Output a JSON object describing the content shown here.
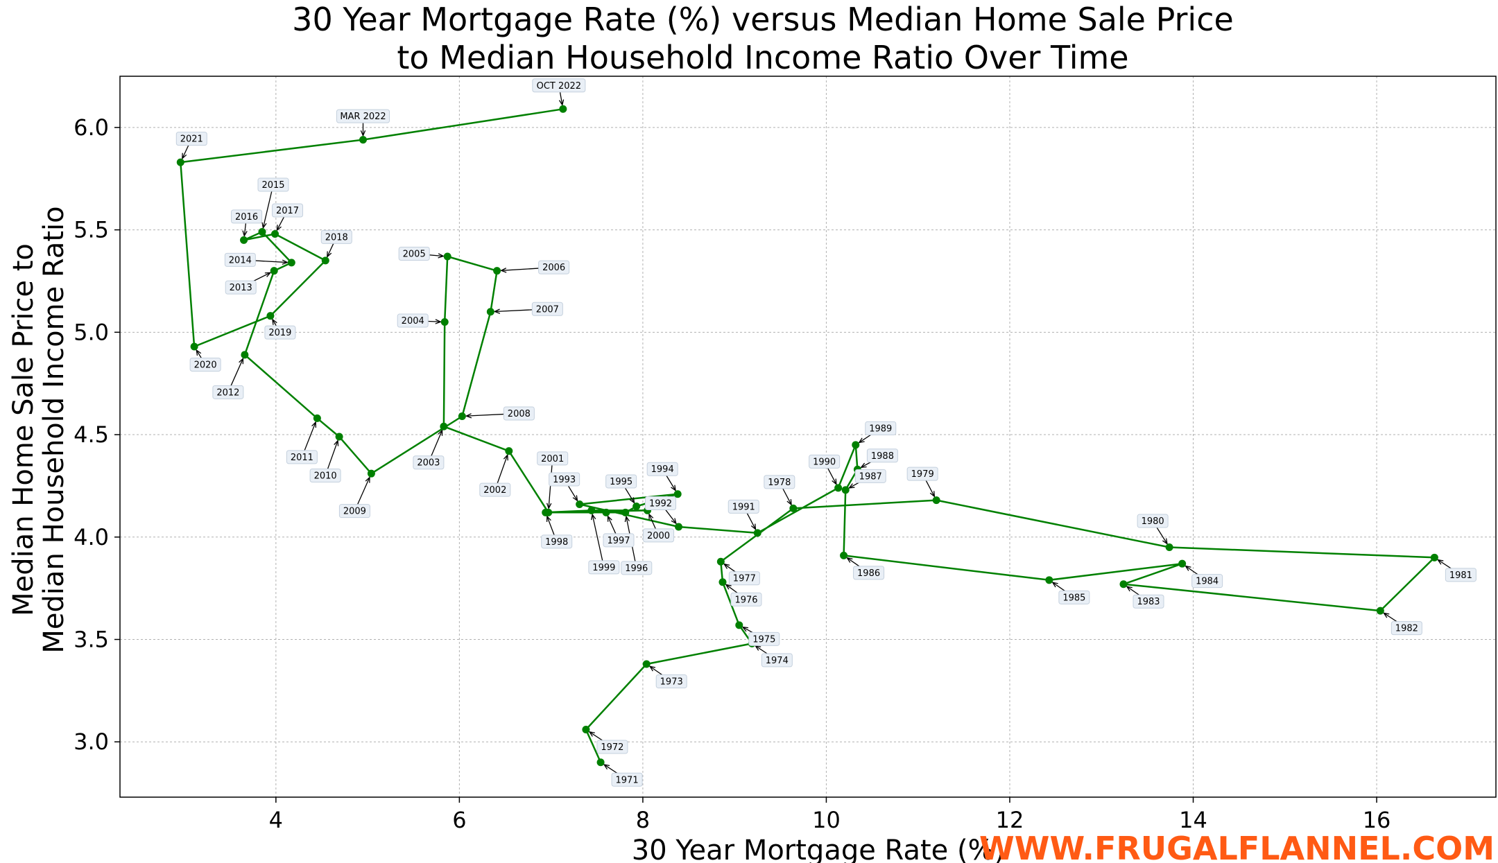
{
  "chart_data": {
    "type": "line",
    "title": [
      "30 Year Mortgage Rate (%) versus Median Home Sale Price",
      "to Median Household Income Ratio Over Time"
    ],
    "xlabel": "30 Year Mortgage Rate (%)",
    "ylabel": [
      "Median Home Sale Price to",
      "Median Household Income Ratio"
    ],
    "xlim": [
      2.3,
      17.3
    ],
    "ylim": [
      2.73,
      6.25
    ],
    "xticks": [
      4,
      6,
      8,
      10,
      12,
      14,
      16
    ],
    "yticks": [
      3.0,
      3.5,
      4.0,
      4.5,
      5.0,
      5.5,
      6.0
    ],
    "grid": true,
    "line_color": "#008000",
    "watermark_color": "#ff5a14",
    "points": [
      {
        "label": "1971",
        "x": 7.54,
        "y": 2.9
      },
      {
        "label": "1972",
        "x": 7.38,
        "y": 3.06
      },
      {
        "label": "1973",
        "x": 8.04,
        "y": 3.38
      },
      {
        "label": "1974",
        "x": 9.19,
        "y": 3.48
      },
      {
        "label": "1975",
        "x": 9.05,
        "y": 3.57
      },
      {
        "label": "1976",
        "x": 8.87,
        "y": 3.78
      },
      {
        "label": "1977",
        "x": 8.85,
        "y": 3.88
      },
      {
        "label": "1978",
        "x": 9.64,
        "y": 4.14
      },
      {
        "label": "1979",
        "x": 11.2,
        "y": 4.18
      },
      {
        "label": "1980",
        "x": 13.74,
        "y": 3.95
      },
      {
        "label": "1981",
        "x": 16.63,
        "y": 3.9
      },
      {
        "label": "1982",
        "x": 16.04,
        "y": 3.64
      },
      {
        "label": "1983",
        "x": 13.24,
        "y": 3.77
      },
      {
        "label": "1984",
        "x": 13.88,
        "y": 3.87
      },
      {
        "label": "1985",
        "x": 12.43,
        "y": 3.79
      },
      {
        "label": "1986",
        "x": 10.19,
        "y": 3.91
      },
      {
        "label": "1987",
        "x": 10.21,
        "y": 4.23
      },
      {
        "label": "1988",
        "x": 10.34,
        "y": 4.33
      },
      {
        "label": "1989",
        "x": 10.32,
        "y": 4.45
      },
      {
        "label": "1990",
        "x": 10.13,
        "y": 4.24
      },
      {
        "label": "1991",
        "x": 9.25,
        "y": 4.02
      },
      {
        "label": "1992",
        "x": 8.39,
        "y": 4.05
      },
      {
        "label": "1993",
        "x": 7.31,
        "y": 4.16
      },
      {
        "label": "1994",
        "x": 8.38,
        "y": 4.21
      },
      {
        "label": "1995",
        "x": 7.93,
        "y": 4.15
      },
      {
        "label": "1996",
        "x": 7.81,
        "y": 4.12
      },
      {
        "label": "1997",
        "x": 7.6,
        "y": 4.12
      },
      {
        "label": "1998",
        "x": 6.94,
        "y": 4.12
      },
      {
        "label": "1999",
        "x": 7.44,
        "y": 4.13
      },
      {
        "label": "2000",
        "x": 8.05,
        "y": 4.13
      },
      {
        "label": "2001",
        "x": 6.97,
        "y": 4.12
      },
      {
        "label": "2002",
        "x": 6.54,
        "y": 4.42
      },
      {
        "label": "2003",
        "x": 5.83,
        "y": 4.54
      },
      {
        "label": "2004",
        "x": 5.84,
        "y": 5.05
      },
      {
        "label": "2005",
        "x": 5.87,
        "y": 5.37
      },
      {
        "label": "2006",
        "x": 6.41,
        "y": 5.3
      },
      {
        "label": "2007",
        "x": 6.34,
        "y": 5.1
      },
      {
        "label": "2008",
        "x": 6.03,
        "y": 4.59
      },
      {
        "label": "2009",
        "x": 5.04,
        "y": 4.31
      },
      {
        "label": "2010",
        "x": 4.69,
        "y": 4.49
      },
      {
        "label": "2011",
        "x": 4.45,
        "y": 4.58
      },
      {
        "label": "2012",
        "x": 3.66,
        "y": 4.89
      },
      {
        "label": "2013",
        "x": 3.98,
        "y": 5.3
      },
      {
        "label": "2014",
        "x": 4.17,
        "y": 5.34
      },
      {
        "label": "2015",
        "x": 3.85,
        "y": 5.49
      },
      {
        "label": "2016",
        "x": 3.65,
        "y": 5.45
      },
      {
        "label": "2017",
        "x": 3.99,
        "y": 5.48
      },
      {
        "label": "2018",
        "x": 4.54,
        "y": 5.35
      },
      {
        "label": "2019",
        "x": 3.94,
        "y": 5.08
      },
      {
        "label": "2020",
        "x": 3.11,
        "y": 4.93
      },
      {
        "label": "2021",
        "x": 2.96,
        "y": 5.83
      },
      {
        "label": "MAR 2022",
        "x": 4.95,
        "y": 5.94
      },
      {
        "label": "OCT 2022",
        "x": 7.13,
        "y": 6.09
      }
    ]
  },
  "watermark": "WWW.FRUGALFLANNEL.COM"
}
